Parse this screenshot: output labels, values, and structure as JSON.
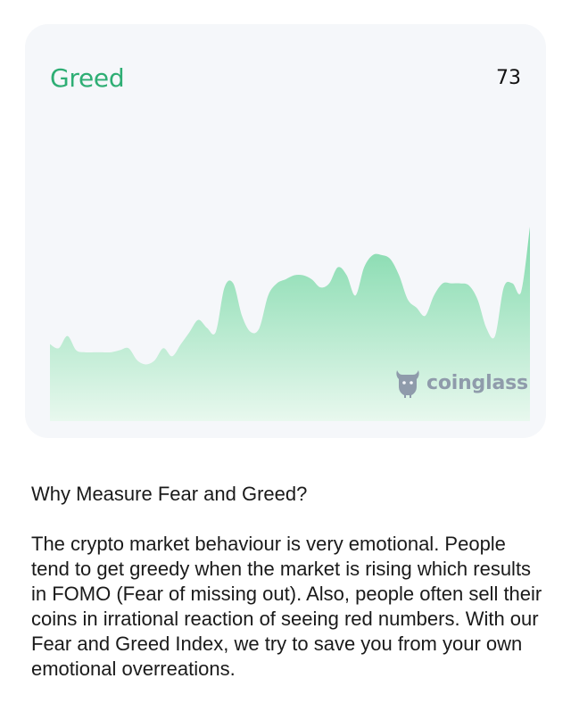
{
  "card": {
    "sentiment_label": "Greed",
    "index_value": "73",
    "watermark": "coinglass",
    "accent_color": "#2eae74",
    "fill_top_color": "#7fd9ab",
    "fill_bottom_color": "#e8f8ee",
    "logo_icon": "coinglass-bull-icon"
  },
  "chart_data": {
    "type": "area",
    "values": [
      38,
      36,
      42,
      35,
      34,
      34,
      34,
      34,
      35,
      36,
      30,
      28,
      30,
      36,
      32,
      38,
      44,
      50,
      46,
      44,
      66,
      68,
      52,
      44,
      46,
      62,
      68,
      70,
      72,
      72,
      70,
      66,
      68,
      76,
      72,
      62,
      76,
      82,
      82,
      80,
      72,
      60,
      56,
      52,
      62,
      68,
      68,
      68,
      67,
      60,
      46,
      42,
      66,
      68,
      64,
      96
    ]
  },
  "info": {
    "heading": "Why Measure Fear and Greed?",
    "body": "The crypto market behaviour is very emotional. People tend to get greedy when the market is rising which results in FOMO (Fear of missing out). Also, people often sell their coins in irrational reaction of seeing red numbers. With our Fear and Greed Index, we try to save you from your own emotional overreations."
  }
}
